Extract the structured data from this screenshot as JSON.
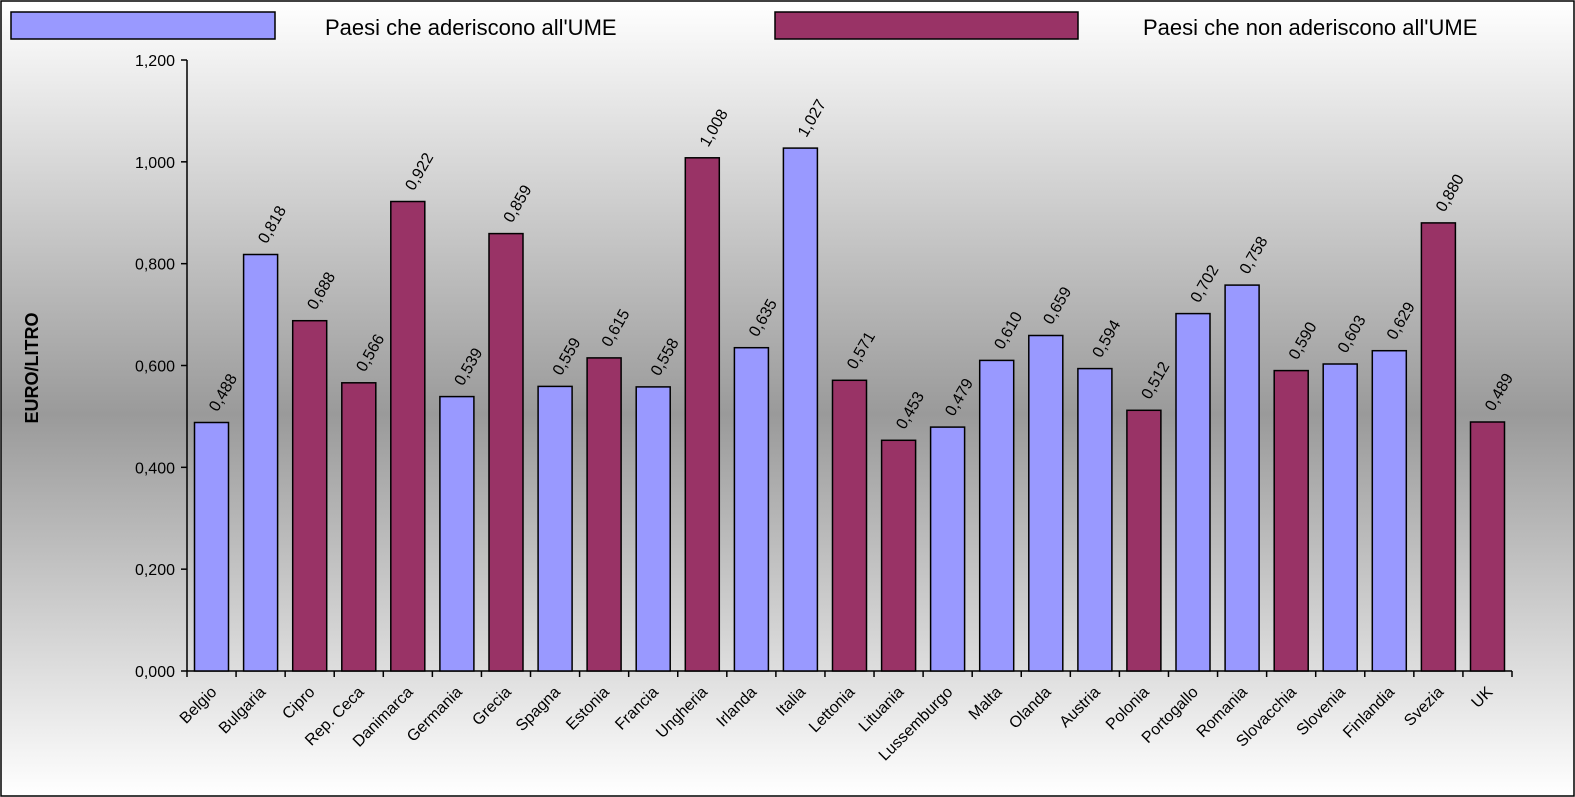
{
  "chart_data": {
    "type": "bar",
    "ylabel": "EURO/LITRO",
    "xlabel": "",
    "ylim": [
      0,
      1.2
    ],
    "yticks": [
      0,
      0.2,
      0.4,
      0.6,
      0.8,
      1.0,
      1.2
    ],
    "ytick_labels": [
      "0,000",
      "0,200",
      "0,400",
      "0,600",
      "0,800",
      "1,000",
      "1,200"
    ],
    "legend_position": "top",
    "colors": {
      "ume": "#9999ff",
      "non_ume": "#993366"
    },
    "series": [
      {
        "name": "Paesi che aderiscono all'UME",
        "key": "ume"
      },
      {
        "name": "Paesi che non aderiscono all'UME",
        "key": "non_ume"
      }
    ],
    "categories": [
      "Belgio",
      "Bulgaria",
      "Cipro",
      "Rep. Ceca",
      "Danimarca",
      "Germania",
      "Grecia",
      "Spagna",
      "Estonia",
      "Francia",
      "Ungheria",
      "Irlanda",
      "Italia",
      "Lettonia",
      "Lituania",
      "Lussemburgo",
      "Malta",
      "Olanda",
      "Austria",
      "Polonia",
      "Portogallo",
      "Romania",
      "Slovacchia",
      "Slovenia",
      "Finlandia",
      "Svezia",
      "UK"
    ],
    "values": [
      0.488,
      0.818,
      0.688,
      0.566,
      0.922,
      0.539,
      0.859,
      0.559,
      0.615,
      0.558,
      1.008,
      0.635,
      1.027,
      0.571,
      0.453,
      0.479,
      0.61,
      0.659,
      0.594,
      0.512,
      0.702,
      0.758,
      0.59,
      0.603,
      0.629,
      0.88,
      0.489
    ],
    "value_labels": [
      "0,488",
      "0,818",
      "0,688",
      "0,566",
      "0,922",
      "0,539",
      "0,859",
      "0,559",
      "0,615",
      "0,558",
      "1,008",
      "0,635",
      "1,027",
      "0,571",
      "0,453",
      "0,479",
      "0,610",
      "0,659",
      "0,594",
      "0,512",
      "0,702",
      "0,758",
      "0,590",
      "0,603",
      "0,629",
      "0,880",
      "0,489"
    ],
    "groups": [
      "ume",
      "ume",
      "non_ume",
      "non_ume",
      "non_ume",
      "ume",
      "non_ume",
      "ume",
      "non_ume",
      "ume",
      "non_ume",
      "ume",
      "ume",
      "non_ume",
      "non_ume",
      "ume",
      "ume",
      "ume",
      "ume",
      "non_ume",
      "ume",
      "ume",
      "non_ume",
      "ume",
      "ume",
      "non_ume",
      "non_ume"
    ]
  }
}
